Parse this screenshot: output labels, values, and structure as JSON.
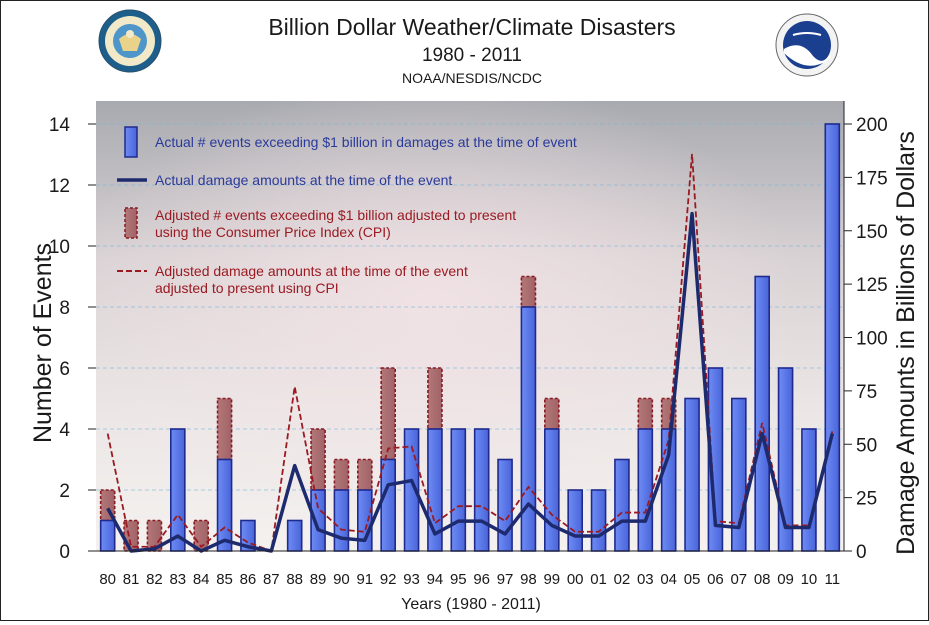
{
  "chart_data": {
    "type": "bar",
    "title": "Billion Dollar Weather/Climate Disasters",
    "subtitle": "1980 - 2011",
    "source": "NOAA/NESDIS/NCDC",
    "xlabel": "Years (1980 - 2011)",
    "ylabel": "Number of Events",
    "y2label": "Damage Amounts in Billions of Dollars",
    "ylim": [
      0,
      14
    ],
    "y2lim": [
      0,
      200
    ],
    "yticks": [
      "0",
      "2",
      "4",
      "6",
      "8",
      "10",
      "12",
      "14"
    ],
    "y2ticks": [
      "0",
      "25",
      "50",
      "75",
      "100",
      "125",
      "150",
      "175",
      "200"
    ],
    "categories": [
      "80",
      "81",
      "82",
      "83",
      "84",
      "85",
      "86",
      "87",
      "88",
      "89",
      "90",
      "91",
      "92",
      "93",
      "94",
      "95",
      "96",
      "97",
      "98",
      "99",
      "00",
      "01",
      "02",
      "03",
      "04",
      "05",
      "06",
      "07",
      "08",
      "09",
      "10",
      "11"
    ],
    "grid": true,
    "legend_position": "top-left",
    "series": [
      {
        "name": "Actual # events exceeding $1 billion in damages at the time of event",
        "kind": "bar",
        "axis": "left",
        "color": "#5b78e8",
        "values": [
          1,
          0,
          0,
          4,
          0,
          3,
          1,
          0,
          1,
          2,
          2,
          2,
          3,
          4,
          4,
          4,
          4,
          3,
          8,
          4,
          2,
          2,
          3,
          4,
          4,
          5,
          6,
          5,
          9,
          6,
          4,
          14
        ]
      },
      {
        "name": "Actual damage amounts at the time of the event",
        "kind": "line",
        "axis": "right",
        "color": "#1e2a6e",
        "values": [
          20,
          0,
          1,
          7,
          0,
          5,
          2,
          0,
          40,
          10,
          6,
          5,
          31,
          33,
          8,
          14,
          14,
          8,
          22,
          12,
          7,
          7,
          14,
          14,
          45,
          158,
          12,
          11,
          55,
          11,
          11,
          55
        ]
      },
      {
        "name": "Adjusted # events exceeding $1 billion adjusted to present using the Consumer Price Index (CPI)",
        "kind": "bar",
        "axis": "left",
        "color": "#9a2a30",
        "values": [
          2,
          1,
          1,
          4,
          1,
          5,
          1,
          0,
          1,
          4,
          3,
          3,
          6,
          4,
          6,
          4,
          4,
          3,
          9,
          5,
          2,
          2,
          3,
          5,
          5,
          5,
          6,
          5,
          9,
          6,
          4,
          14
        ]
      },
      {
        "name": "Adjusted damage amounts at the time of the event adjusted to present using CPI",
        "kind": "dashed-line",
        "axis": "right",
        "color": "#9a1a22",
        "values": [
          55,
          2,
          2,
          17,
          2,
          11,
          4,
          0,
          77,
          20,
          10,
          9,
          48,
          49,
          13,
          21,
          21,
          14,
          30,
          17,
          9,
          9,
          18,
          18,
          52,
          186,
          14,
          13,
          60,
          12,
          12,
          56
        ]
      }
    ]
  },
  "logos": {
    "left_name": "department-of-commerce-seal",
    "right_name": "noaa-logo"
  }
}
